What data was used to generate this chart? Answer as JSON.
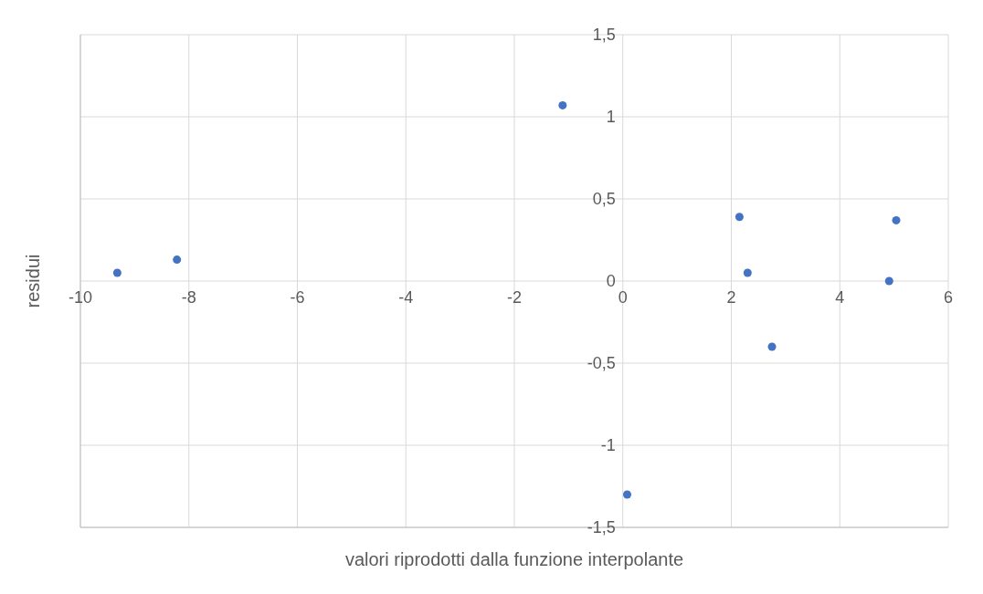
{
  "chart_data": {
    "type": "scatter",
    "xlabel": "valori riprodotti  dalla funzione interpolante",
    "ylabel": "residui",
    "x": [
      -9.32,
      -8.22,
      -1.11,
      2.15,
      2.3,
      2.75,
      4.91,
      5.04,
      0.08
    ],
    "series": [
      {
        "color": "#4472c4",
        "values": [
          0.05,
          0.13,
          1.07,
          0.39,
          0.05,
          -0.4,
          0,
          0.37,
          -1.3
        ]
      }
    ],
    "xlim": [
      -10,
      6
    ],
    "xticks": [
      -10,
      -8,
      -6,
      -4,
      -2,
      0,
      2,
      4,
      6
    ],
    "ylim": [
      -1.5,
      1.5
    ],
    "yticks": [
      {
        "value": -1.5,
        "label": "-1,5"
      },
      {
        "value": -1,
        "label": "-1"
      },
      {
        "value": -0.5,
        "label": "-0,5"
      },
      {
        "value": 0,
        "label": "0"
      },
      {
        "value": 0.5,
        "label": "0,5"
      },
      {
        "value": 1,
        "label": "1"
      },
      {
        "value": 1.5,
        "label": "1,5"
      }
    ],
    "grid": true,
    "marker": "circle"
  }
}
